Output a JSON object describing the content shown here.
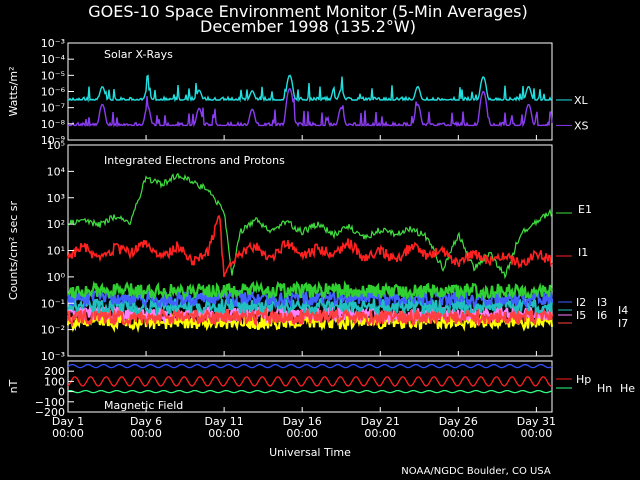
{
  "header": {
    "title": "GOES-10 Space Environment Monitor (5-Min Averages)",
    "subtitle": "December 1998 (135.2°W)"
  },
  "footer": {
    "credit": "NOAA/NGDC Boulder, CO USA"
  },
  "colors": {
    "xl": "#22e0e0",
    "xs": "#8a3cf0",
    "e1": "#40e040",
    "i1": "#ff2020",
    "i2": "#30d030",
    "i3": "#4060ff",
    "i4": "#20c0c0",
    "i5": "#ffff00",
    "i6": "#ff80ff",
    "i7": "#ff4040",
    "hp": "#ff2020",
    "hn": "#3050ff",
    "he": "#30ff80"
  },
  "chart_data": [
    {
      "type": "line",
      "panel": "xray",
      "label": "Solar X-Rays",
      "ylabel": "Watts/m²",
      "yscale": "log",
      "ylim": [
        1e-09,
        0.001
      ],
      "y_ticks": [
        "10⁻³",
        "10⁻⁴",
        "10⁻⁵",
        "10⁻⁶",
        "10⁻⁷",
        "10⁻⁸",
        "10⁻⁹"
      ],
      "xlim": [
        1,
        32
      ],
      "series": [
        {
          "name": "XL",
          "baseline": 3e-07,
          "peaks": [
            [
              3.2,
              2e-06
            ],
            [
              6.1,
              1.5e-06
            ],
            [
              9.4,
              1.2e-06
            ],
            [
              12.8,
              1.1e-06
            ],
            [
              15.2,
              1e-05
            ],
            [
              18.5,
              1.3e-06
            ],
            [
              23.4,
              2e-06
            ],
            [
              27.6,
              8e-06
            ],
            [
              30.5,
              2e-06
            ]
          ]
        },
        {
          "name": "XS",
          "baseline": 8e-09,
          "peaks": [
            [
              3.2,
              1.6e-07
            ],
            [
              6.1,
              1.2e-07
            ],
            [
              9.4,
              9e-08
            ],
            [
              12.8,
              8e-08
            ],
            [
              15.2,
              1.5e-06
            ],
            [
              18.5,
              1e-07
            ],
            [
              23.4,
              1.6e-07
            ],
            [
              27.6,
              1e-06
            ],
            [
              30.5,
              1.6e-07
            ]
          ]
        }
      ]
    },
    {
      "type": "line",
      "panel": "particles",
      "label": "Integrated Electrons and Protons",
      "ylabel": "Counts/cm² sec sr",
      "yscale": "log",
      "ylim": [
        0.001,
        100000.0
      ],
      "y_ticks": [
        "10⁵",
        "10⁴",
        "10³",
        "10²",
        "10¹",
        "10⁰",
        "10⁻¹",
        "10⁻²",
        "10⁻³"
      ],
      "xlim": [
        1,
        32
      ],
      "series": [
        {
          "name": "E1",
          "points": [
            [
              1,
              100
            ],
            [
              2,
              150
            ],
            [
              3,
              90
            ],
            [
              4,
              200
            ],
            [
              5,
              120
            ],
            [
              6,
              6000
            ],
            [
              7,
              3000
            ],
            [
              8,
              8000
            ],
            [
              9,
              4000
            ],
            [
              10,
              2000
            ],
            [
              11,
              300
            ],
            [
              11.5,
              1
            ],
            [
              12,
              50
            ],
            [
              13,
              150
            ],
            [
              14,
              60
            ],
            [
              15,
              120
            ],
            [
              16,
              50
            ],
            [
              17,
              100
            ],
            [
              18,
              40
            ],
            [
              19,
              80
            ],
            [
              20,
              30
            ],
            [
              21,
              60
            ],
            [
              22,
              40
            ],
            [
              23,
              70
            ],
            [
              24,
              30
            ],
            [
              25,
              2
            ],
            [
              26,
              40
            ],
            [
              27,
              2
            ],
            [
              28,
              8
            ],
            [
              29,
              1
            ],
            [
              30,
              50
            ],
            [
              31,
              120
            ],
            [
              32,
              300
            ]
          ]
        },
        {
          "name": "I1",
          "points": [
            [
              1,
              6
            ],
            [
              2,
              15
            ],
            [
              3,
              4
            ],
            [
              4,
              12
            ],
            [
              5,
              8
            ],
            [
              6,
              20
            ],
            [
              7,
              5
            ],
            [
              8,
              15
            ],
            [
              9,
              4
            ],
            [
              10,
              10
            ],
            [
              10.7,
              200
            ],
            [
              11,
              1
            ],
            [
              12,
              8
            ],
            [
              13,
              15
            ],
            [
              14,
              5
            ],
            [
              15,
              20
            ],
            [
              16,
              6
            ],
            [
              17,
              12
            ],
            [
              18,
              8
            ],
            [
              19,
              20
            ],
            [
              20,
              5
            ],
            [
              21,
              10
            ],
            [
              22,
              4
            ],
            [
              23,
              15
            ],
            [
              24,
              6
            ],
            [
              25,
              10
            ],
            [
              26,
              3
            ],
            [
              27,
              8
            ],
            [
              28,
              4
            ],
            [
              29,
              6
            ],
            [
              30,
              3
            ],
            [
              31,
              8
            ],
            [
              32,
              4
            ]
          ]
        },
        {
          "name": "I2",
          "level": 0.3
        },
        {
          "name": "I3",
          "level": 0.15
        },
        {
          "name": "I4",
          "level": 0.08
        },
        {
          "name": "I5",
          "level": 0.02
        },
        {
          "name": "I6",
          "level": 0.04
        },
        {
          "name": "I7",
          "level": 0.03
        }
      ]
    },
    {
      "type": "line",
      "panel": "magnetic",
      "label": "Magnetic Field",
      "ylabel": "nT",
      "ylim": [
        -200,
        300
      ],
      "y_ticks": [
        "200",
        "100",
        "0",
        "−100",
        "−200"
      ],
      "xlim": [
        1,
        32
      ],
      "x_tick_values": [
        1,
        6,
        11,
        16,
        21,
        26,
        31
      ],
      "x_ticks": [
        "Day 1\n00:00",
        "Day 6\n00:00",
        "Day 11\n00:00",
        "Day 16\n00:00",
        "Day 21\n00:00",
        "Day 26\n00:00",
        "Day 31\n00:00"
      ],
      "xlabel": "Universal Time",
      "series": [
        {
          "name": "Hp",
          "mean": 100,
          "amplitude": 45
        },
        {
          "name": "Hn",
          "mean": 250,
          "amplitude": 15
        },
        {
          "name": "He",
          "mean": 0,
          "amplitude": 10
        }
      ]
    }
  ]
}
